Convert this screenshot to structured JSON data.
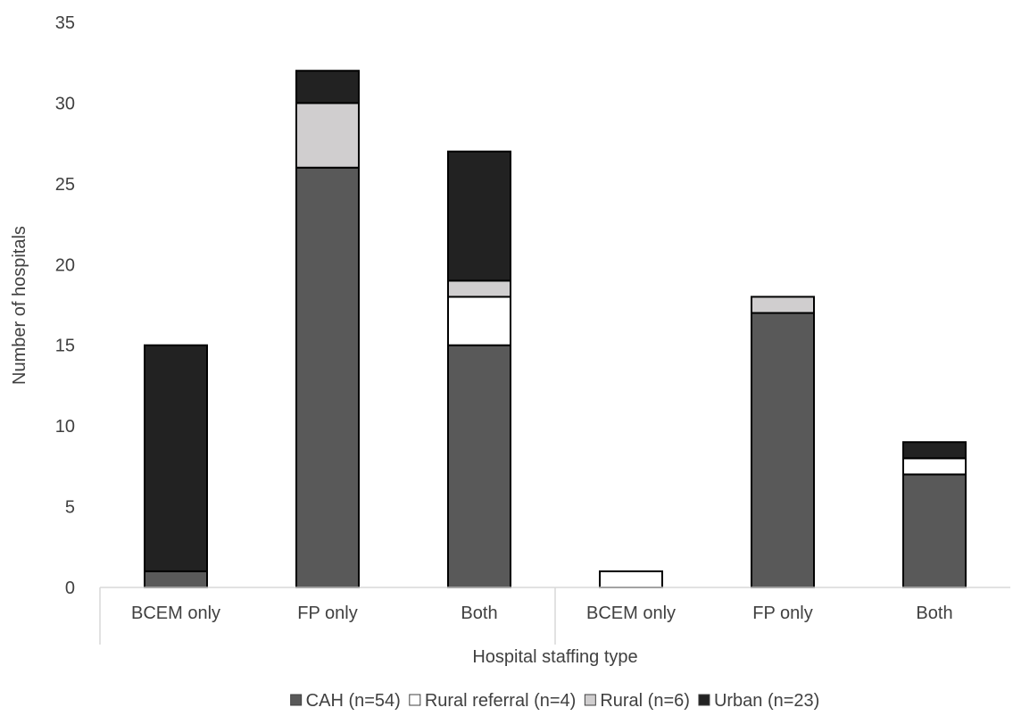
{
  "chart_data": {
    "type": "bar",
    "stacked": true,
    "categories": [
      "BCEM only",
      "FP only",
      "Both",
      "BCEM only",
      "FP only",
      "Both"
    ],
    "series": [
      {
        "name": "CAH (n=54)",
        "values": [
          1,
          26,
          15,
          0,
          17,
          7
        ],
        "color": "#595959"
      },
      {
        "name": "Rural referral (n=4)",
        "values": [
          0,
          0,
          3,
          1,
          0,
          1
        ],
        "color": "#ffffff"
      },
      {
        "name": "Rural (n=6)",
        "values": [
          0,
          4,
          1,
          0,
          1,
          0
        ],
        "color": "#d0cecf"
      },
      {
        "name": "Urban (n=23)",
        "values": [
          14,
          2,
          8,
          0,
          0,
          1
        ],
        "color": "#222222"
      }
    ],
    "title": "",
    "xlabel": "Hospital staffing type",
    "ylabel": "Number of hospitals",
    "ylim": [
      0,
      35
    ],
    "yticks": [
      0,
      5,
      10,
      15,
      20,
      25,
      30,
      35
    ],
    "grid": false,
    "legend_position": "bottom"
  }
}
